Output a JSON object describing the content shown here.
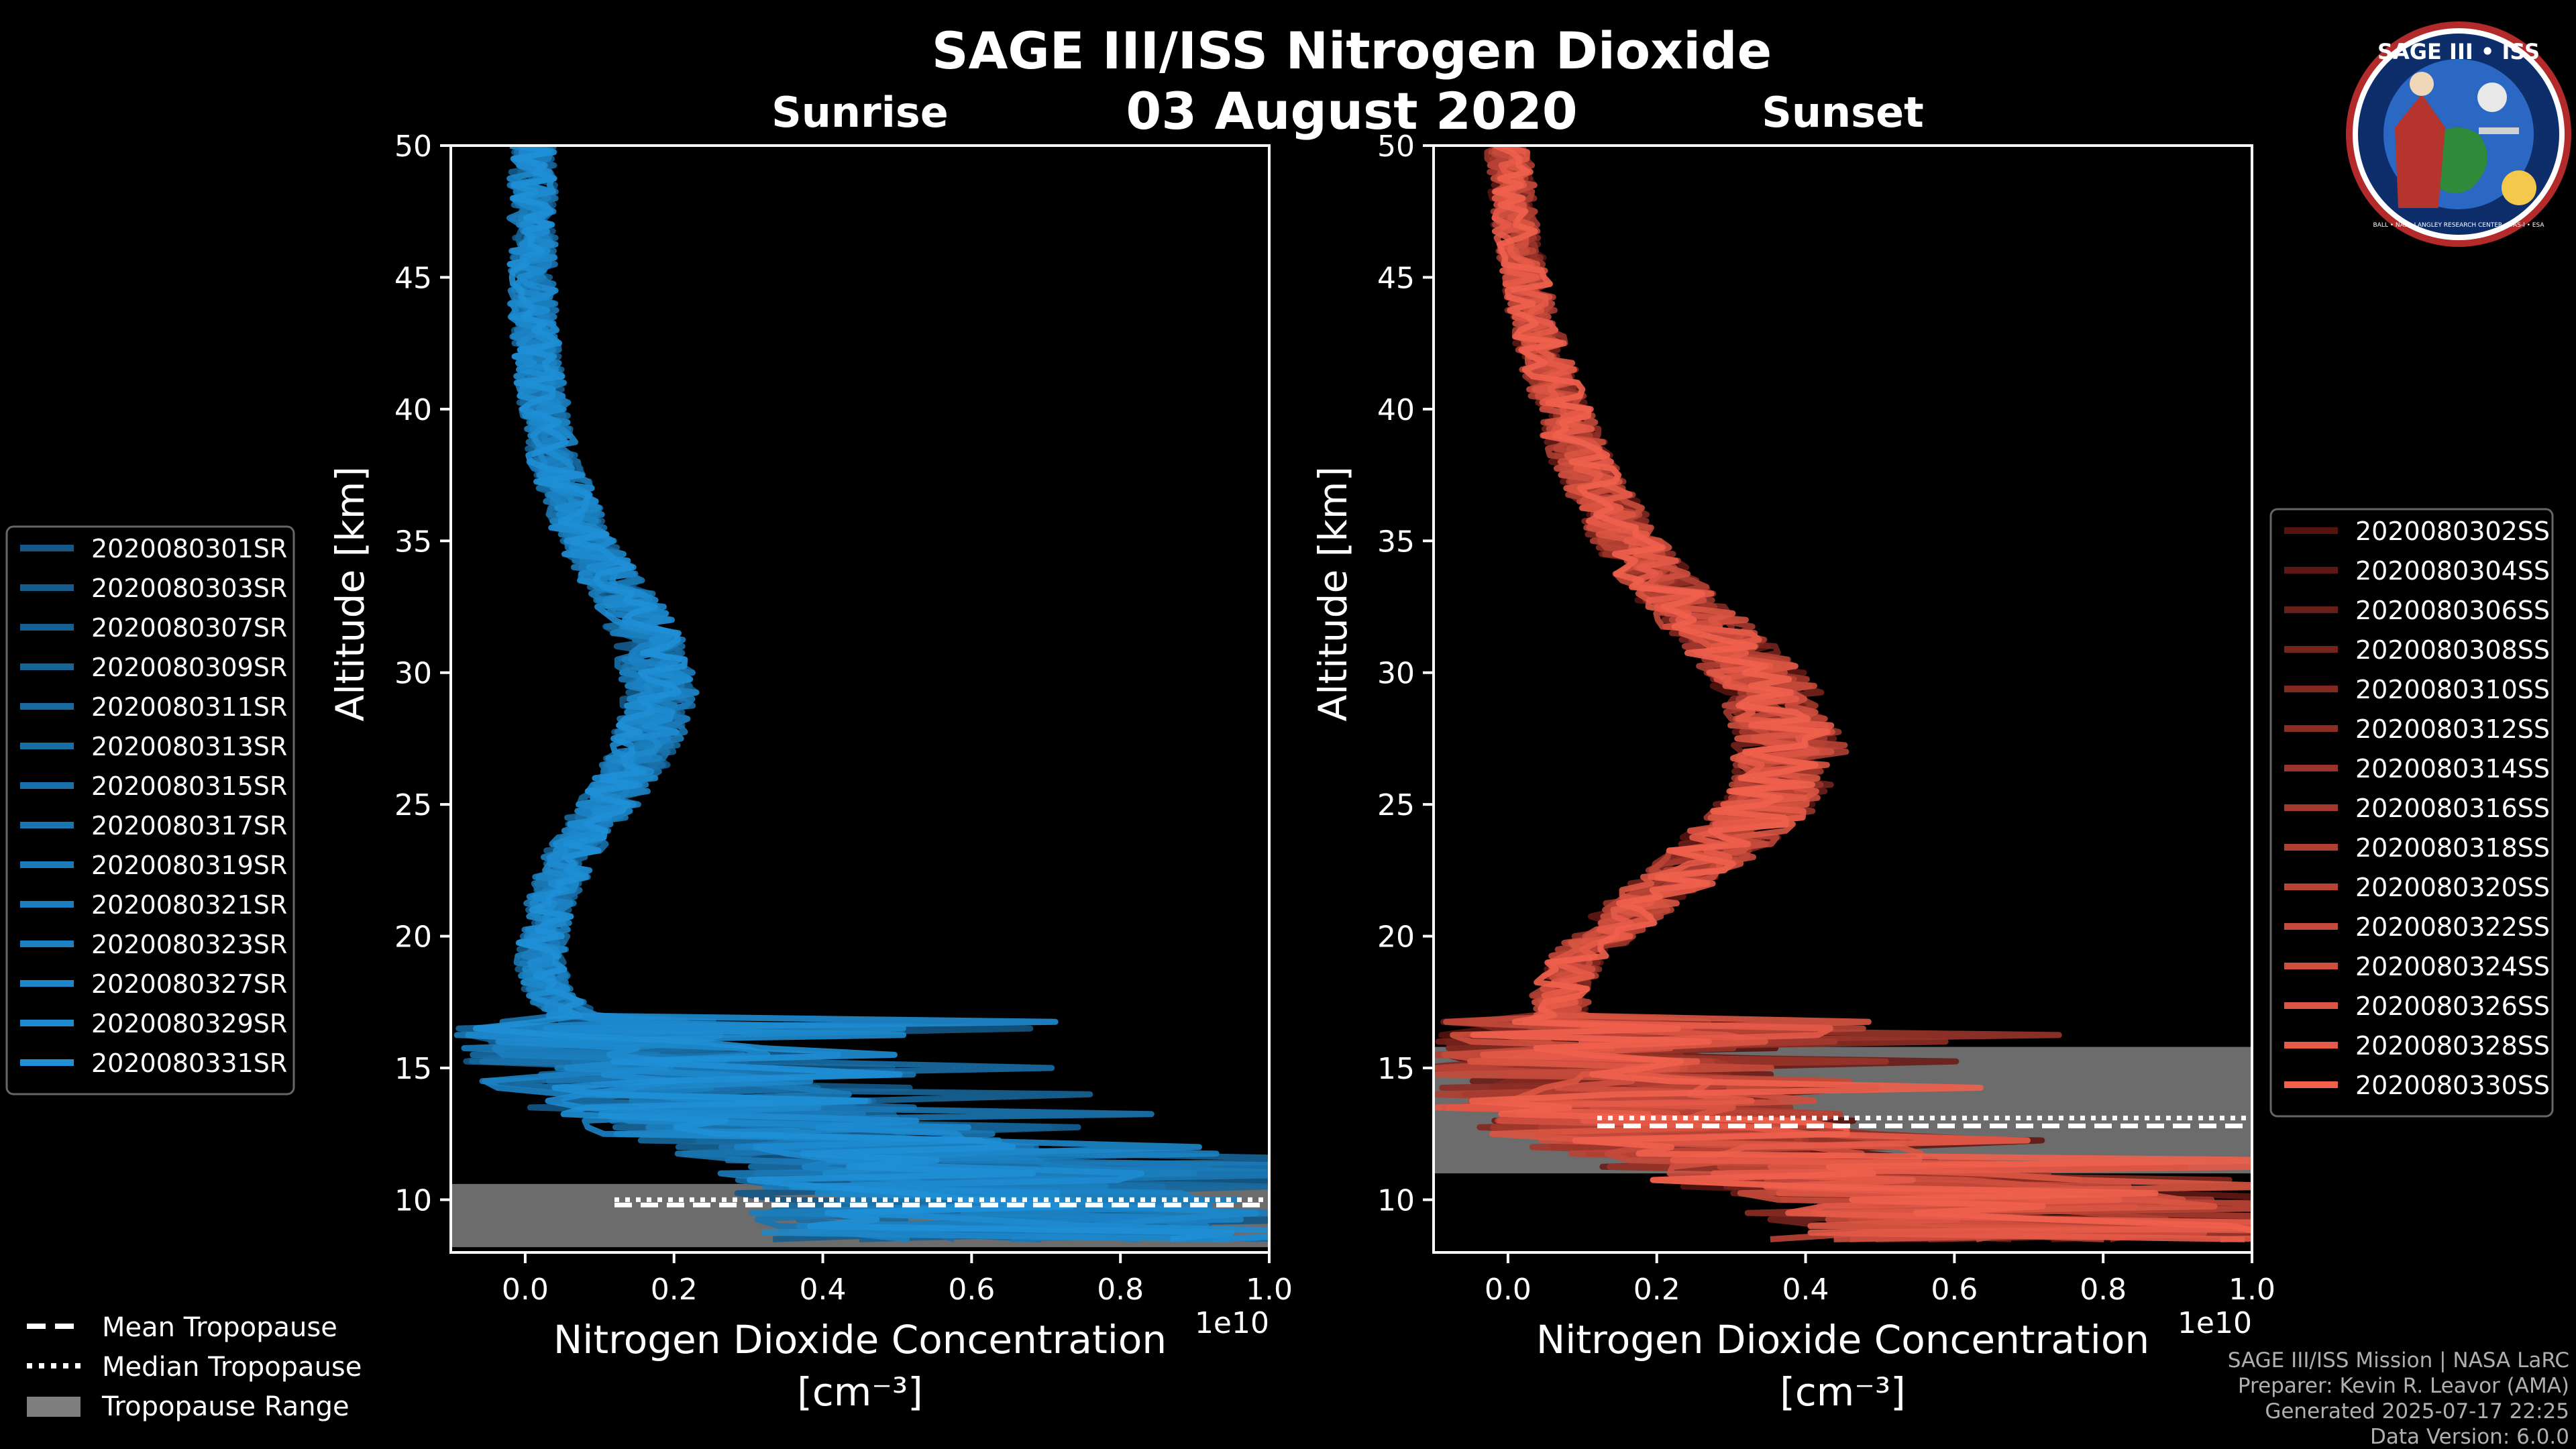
{
  "title": "SAGE III/ISS Nitrogen Dioxide",
  "date": "03 August 2020",
  "logo": {
    "top": "SAGE III • ISS",
    "ring": "BALL • NASA LANGLEY RESEARCH CENTER • TAS-I • ESA"
  },
  "credits": [
    "SAGE III/ISS Mission | NASA LaRC",
    "Preparer: Kevin R. Leavor (AMA)",
    "Generated 2025-07-17 22:25",
    "Data Version: 6.0.0"
  ],
  "tropo_legend": [
    {
      "label": "Mean Tropopause",
      "style": "dashed"
    },
    {
      "label": "Median Tropopause",
      "style": "dotted"
    },
    {
      "label": "Tropopause Range",
      "style": "patch"
    }
  ],
  "colors": {
    "background": "#000000",
    "sunrise": "#1f8fd6",
    "sunset": "#f0604c",
    "tropo_band": "#7f7f7f"
  },
  "chart_data": [
    {
      "type": "line",
      "panel": "Sunrise",
      "title": "Sunrise",
      "xlabel": "Nitrogen Dioxide Concentration",
      "xunit": "[cm⁻³]",
      "xscale_label": "1e10",
      "ylabel": "Altitude [km]",
      "xlim": [
        -0.1,
        1.0
      ],
      "ylim": [
        8,
        50
      ],
      "xticks": [
        0.0,
        0.2,
        0.4,
        0.6,
        0.8,
        1.0
      ],
      "xtick_labels": [
        "0.0",
        "0.2",
        "0.4",
        "0.6",
        "0.8",
        "1.0"
      ],
      "yticks": [
        10,
        15,
        20,
        25,
        30,
        35,
        40,
        45,
        50
      ],
      "ytick_labels": [
        "10",
        "15",
        "20",
        "25",
        "30",
        "35",
        "40",
        "45",
        "50"
      ],
      "legend_position": "left",
      "series": [
        "2020080301SR",
        "2020080303SR",
        "2020080307SR",
        "2020080309SR",
        "2020080311SR",
        "2020080313SR",
        "2020080315SR",
        "2020080317SR",
        "2020080319SR",
        "2020080321SR",
        "2020080323SR",
        "2020080327SR",
        "2020080329SR",
        "2020080331SR"
      ],
      "profile": {
        "altitude": [
          50,
          47,
          44,
          41,
          38,
          35,
          33,
          31,
          29,
          27,
          25,
          23,
          21,
          19,
          18,
          17,
          16,
          15,
          14,
          13,
          12,
          11,
          10,
          9
        ],
        "no2": [
          0.01,
          0.01,
          0.01,
          0.02,
          0.04,
          0.08,
          0.13,
          0.17,
          0.18,
          0.16,
          0.11,
          0.06,
          0.03,
          0.02,
          0.03,
          0.06,
          0.1,
          0.14,
          0.2,
          0.3,
          0.45,
          0.55,
          0.6,
          0.65
        ]
      },
      "tropopause": {
        "mean": 9.8,
        "median": 10.0,
        "range": [
          8.2,
          10.6
        ]
      }
    },
    {
      "type": "line",
      "panel": "Sunset",
      "title": "Sunset",
      "xlabel": "Nitrogen Dioxide Concentration",
      "xunit": "[cm⁻³]",
      "xscale_label": "1e10",
      "ylabel": "Altitude [km]",
      "xlim": [
        -0.1,
        1.0
      ],
      "ylim": [
        8,
        50
      ],
      "xticks": [
        0.0,
        0.2,
        0.4,
        0.6,
        0.8,
        1.0
      ],
      "xtick_labels": [
        "0.0",
        "0.2",
        "0.4",
        "0.6",
        "0.8",
        "1.0"
      ],
      "yticks": [
        10,
        15,
        20,
        25,
        30,
        35,
        40,
        45,
        50
      ],
      "ytick_labels": [
        "10",
        "15",
        "20",
        "25",
        "30",
        "35",
        "40",
        "45",
        "50"
      ],
      "legend_position": "right",
      "series": [
        "2020080302SS",
        "2020080304SS",
        "2020080306SS",
        "2020080308SS",
        "2020080310SS",
        "2020080312SS",
        "2020080314SS",
        "2020080316SS",
        "2020080318SS",
        "2020080320SS",
        "2020080322SS",
        "2020080324SS",
        "2020080326SS",
        "2020080328SS",
        "2020080330SS"
      ],
      "profile": {
        "altitude": [
          50,
          47,
          44,
          41,
          38,
          35,
          33,
          31,
          29,
          27,
          25,
          23,
          21,
          19,
          18,
          17,
          16,
          15,
          14,
          13,
          12,
          11,
          10,
          9
        ],
        "no2": [
          0.0,
          0.01,
          0.03,
          0.06,
          0.1,
          0.16,
          0.22,
          0.3,
          0.36,
          0.38,
          0.35,
          0.27,
          0.17,
          0.09,
          0.07,
          0.07,
          0.08,
          0.09,
          0.12,
          0.18,
          0.3,
          0.45,
          0.6,
          0.7
        ]
      },
      "tropopause": {
        "mean": 12.8,
        "median": 13.1,
        "range": [
          11.0,
          15.8
        ]
      }
    }
  ]
}
